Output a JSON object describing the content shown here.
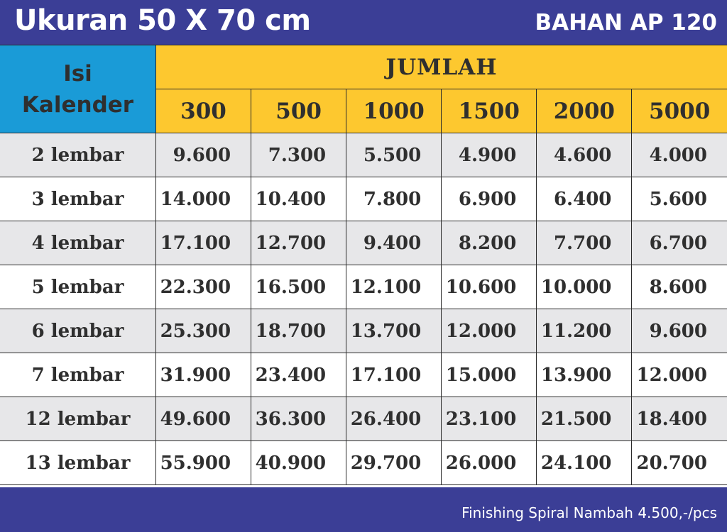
{
  "header": {
    "title": "Ukuran 50 X 70 cm",
    "material": "BAHAN AP 120"
  },
  "table": {
    "corner": "Isi Kalender",
    "group_header": "JUMLAH",
    "columns": [
      "300",
      "500",
      "1000",
      "1500",
      "2000",
      "5000"
    ],
    "rows": [
      {
        "label": "2 lembar",
        "values": [
          "9.600",
          "7.300",
          "5.500",
          "4.900",
          "4.600",
          "4.000"
        ]
      },
      {
        "label": "3 lembar",
        "values": [
          "14.000",
          "10.400",
          "7.800",
          "6.900",
          "6.400",
          "5.600"
        ]
      },
      {
        "label": "4 lembar",
        "values": [
          "17.100",
          "12.700",
          "9.400",
          "8.200",
          "7.700",
          "6.700"
        ]
      },
      {
        "label": "5 lembar",
        "values": [
          "22.300",
          "16.500",
          "12.100",
          "10.600",
          "10.000",
          "8.600"
        ]
      },
      {
        "label": "6 lembar",
        "values": [
          "25.300",
          "18.700",
          "13.700",
          "12.000",
          "11.200",
          "9.600"
        ]
      },
      {
        "label": "7 lembar",
        "values": [
          "31.900",
          "23.400",
          "17.100",
          "15.000",
          "13.900",
          "12.000"
        ]
      },
      {
        "label": "12 lembar",
        "values": [
          "49.600",
          "36.300",
          "26.400",
          "23.100",
          "21.500",
          "18.400"
        ]
      },
      {
        "label": "13 lembar",
        "values": [
          "55.900",
          "40.900",
          "29.700",
          "26.000",
          "24.100",
          "20.700"
        ]
      }
    ]
  },
  "footer": {
    "note": "Finishing Spiral Nambah 4.500,-/pcs"
  }
}
